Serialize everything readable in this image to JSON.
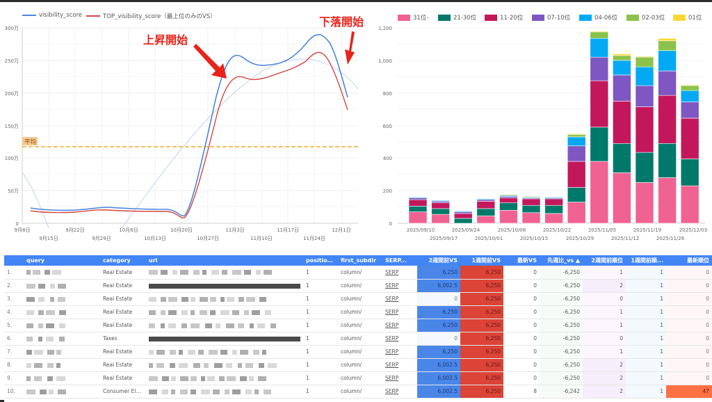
{
  "line_chart": {
    "legend": [
      {
        "label": "visibility_score",
        "color": "#4a86e0"
      },
      {
        "label": "TOP_visibility_score（最上位のみのVS）",
        "color": "#d4453f"
      }
    ],
    "y_ticks": [
      "300万",
      "250万",
      "200万",
      "150万",
      "100万",
      "50万",
      "0"
    ],
    "x_ticks_top": [
      "9月8日",
      "9月22日",
      "10月6日",
      "10月20日",
      "11月3日",
      "11月17日",
      "12月1日"
    ],
    "x_ticks_bottom": [
      "9月15日",
      "9月29日",
      "10月13日",
      "10月27日",
      "11月10日",
      "11月24日"
    ],
    "average_label": "平均",
    "annotations": {
      "rise": "上昇開始",
      "fall": "下落開始"
    }
  },
  "bar_chart": {
    "legend": [
      {
        "label": "31位-",
        "color": "#f06292"
      },
      {
        "label": "21-30位",
        "color": "#00796b"
      },
      {
        "label": "11-20位",
        "color": "#c2185b"
      },
      {
        "label": "07-10位",
        "color": "#7e57c2"
      },
      {
        "label": "04-06位",
        "color": "#03a9f4"
      },
      {
        "label": "02-03位",
        "color": "#8bc34a"
      },
      {
        "label": "01位",
        "color": "#fdd835"
      }
    ],
    "y_ticks": [
      "1,200",
      "1,000",
      "800",
      "600",
      "400",
      "200",
      "0"
    ],
    "x_ticks_top": [
      "2025/09/10",
      "2025/09/24",
      "2025/10/08",
      "2025/10/22",
      "2025/11/05",
      "2025/11/19",
      "2025/12/03"
    ],
    "x_ticks_bottom": [
      "2025/09/17",
      "2025/10/01",
      "2025/10/15",
      "2025/10/29",
      "2025/11/12",
      "2025/11/26"
    ]
  },
  "chart_data": [
    {
      "type": "line",
      "title": "",
      "xlabel": "",
      "ylabel": "",
      "ylim": [
        0,
        3000000
      ],
      "x": [
        "9月8日",
        "9月15日",
        "9月22日",
        "9月29日",
        "10月6日",
        "10月13日",
        "10月20日",
        "10月27日",
        "11月3日",
        "11月10日",
        "11月17日",
        "11月24日",
        "12月1日"
      ],
      "series": [
        {
          "name": "visibility_score",
          "values": [
            230000,
            200000,
            195000,
            235000,
            215000,
            210000,
            130000,
            1400000,
            2600000,
            2400000,
            2520000,
            2880000,
            1900000
          ]
        },
        {
          "name": "TOP_visibility_score（最上位のみのVS）",
          "values": [
            185000,
            165000,
            160000,
            190000,
            175000,
            170000,
            100000,
            1250000,
            2250000,
            2200000,
            2350000,
            2630000,
            1750000
          ]
        }
      ],
      "reference_line": {
        "label": "平均",
        "value": 1170000
      },
      "trendline": true,
      "annotations": [
        "上昇開始",
        "下落開始"
      ],
      "grid": true,
      "legend_position": "top"
    },
    {
      "type": "bar",
      "stacked": true,
      "title": "",
      "xlabel": "",
      "ylabel": "",
      "ylim": [
        0,
        1200
      ],
      "categories": [
        "2025/09/10",
        "2025/09/17",
        "2025/09/24",
        "2025/10/01",
        "2025/10/08",
        "2025/10/15",
        "2025/10/22",
        "2025/10/29",
        "2025/11/05",
        "2025/11/12",
        "2025/11/19",
        "2025/11/26",
        "2025/12/03"
      ],
      "series": [
        {
          "name": "31位-",
          "values": [
            70,
            55,
            0,
            45,
            80,
            65,
            60,
            130,
            380,
            310,
            250,
            280,
            230
          ]
        },
        {
          "name": "21-30位",
          "values": [
            35,
            35,
            30,
            45,
            45,
            45,
            50,
            90,
            210,
            180,
            185,
            210,
            165
          ]
        },
        {
          "name": "11-20位",
          "values": [
            40,
            35,
            30,
            45,
            30,
            40,
            40,
            160,
            285,
            260,
            280,
            295,
            250
          ]
        },
        {
          "name": "07-10位",
          "values": [
            10,
            10,
            10,
            10,
            10,
            5,
            5,
            95,
            145,
            160,
            130,
            150,
            100
          ]
        },
        {
          "name": "04-06位",
          "values": [
            5,
            5,
            5,
            5,
            5,
            5,
            5,
            55,
            115,
            90,
            115,
            125,
            70
          ]
        },
        {
          "name": "02-03位",
          "values": [
            0,
            0,
            0,
            0,
            5,
            5,
            0,
            15,
            40,
            30,
            60,
            60,
            30
          ]
        },
        {
          "name": "01位",
          "values": [
            0,
            0,
            0,
            0,
            0,
            0,
            0,
            5,
            5,
            10,
            5,
            15,
            5
          ]
        }
      ],
      "legend_position": "top"
    }
  ],
  "table": {
    "columns": [
      "query",
      "category",
      "url",
      "position...",
      "first_subdir",
      "SERP...",
      "2週間前VS",
      "1週間前VS",
      "最新VS",
      "先週比_vs ▲",
      "2週間前順位",
      "1週間前順...",
      "最新順位"
    ],
    "rows": [
      {
        "idx": "1.",
        "category": "Real Estate",
        "position": "1",
        "subdir": "column/",
        "serp": "SERP",
        "vs2": "6,250",
        "vs1": "6,250",
        "vs0": "0",
        "diff": "-6,250",
        "r2": "1",
        "r1": "1",
        "r0": "0"
      },
      {
        "idx": "2.",
        "category": "Real Estate",
        "position": "1",
        "subdir": "column/",
        "serp": "SERP",
        "vs2": "6,002.5",
        "vs1": "6,250",
        "vs0": "0",
        "diff": "-6,250",
        "r2": "2",
        "r1": "1",
        "r0": "0"
      },
      {
        "idx": "3.",
        "category": "Real Estate",
        "position": "1",
        "subdir": "column/",
        "serp": "SERP",
        "vs2": "0",
        "vs1": "6,250",
        "vs0": "0",
        "diff": "-6,250",
        "r2": "0",
        "r1": "1",
        "r0": "0"
      },
      {
        "idx": "4.",
        "category": "Real Estate",
        "position": "1",
        "subdir": "column/",
        "serp": "SERP",
        "vs2": "6,250",
        "vs1": "6,250",
        "vs0": "0",
        "diff": "-6,250",
        "r2": "1",
        "r1": "1",
        "r0": "0"
      },
      {
        "idx": "5.",
        "category": "Real Estate",
        "position": "1",
        "subdir": "column/",
        "serp": "SERP",
        "vs2": "6,250",
        "vs1": "6,250",
        "vs0": "0",
        "diff": "-6,250",
        "r2": "1",
        "r1": "1",
        "r0": "0"
      },
      {
        "idx": "6.",
        "category": "Taxes",
        "position": "1",
        "subdir": "column/",
        "serp": "SERP",
        "vs2": "0",
        "vs1": "6,250",
        "vs0": "0",
        "diff": "-6,250",
        "r2": "0",
        "r1": "1",
        "r0": "0"
      },
      {
        "idx": "7.",
        "category": "Real Estate",
        "position": "1",
        "subdir": "column/",
        "serp": "SERP",
        "vs2": "6,250",
        "vs1": "6,250",
        "vs0": "0",
        "diff": "-6,250",
        "r2": "1",
        "r1": "1",
        "r0": "0"
      },
      {
        "idx": "8.",
        "category": "Real Estate",
        "position": "1",
        "subdir": "column/",
        "serp": "SERP",
        "vs2": "6,002.5",
        "vs1": "6,250",
        "vs0": "0",
        "diff": "-6,250",
        "r2": "2",
        "r1": "1",
        "r0": "0"
      },
      {
        "idx": "9.",
        "category": "Real Estate",
        "position": "1",
        "subdir": "column/",
        "serp": "SERP",
        "vs2": "6,002.5",
        "vs1": "6,250",
        "vs0": "0",
        "diff": "-6,250",
        "r2": "2",
        "r1": "1",
        "r0": "0"
      },
      {
        "idx": "10.",
        "category": "Consumer Ele...",
        "position": "1",
        "subdir": "column/",
        "serp": "SERP",
        "vs2": "6,002.5",
        "vs1": "6,250",
        "vs0": "8",
        "diff": "-6,242",
        "r2": "2",
        "r1": "1",
        "r0": "47"
      }
    ]
  },
  "colors": {
    "header_blue": "#4285f4",
    "vs2_blue": "#4a86e8",
    "vs1_red": "#db4437",
    "rank_orange": "#ff7043"
  }
}
